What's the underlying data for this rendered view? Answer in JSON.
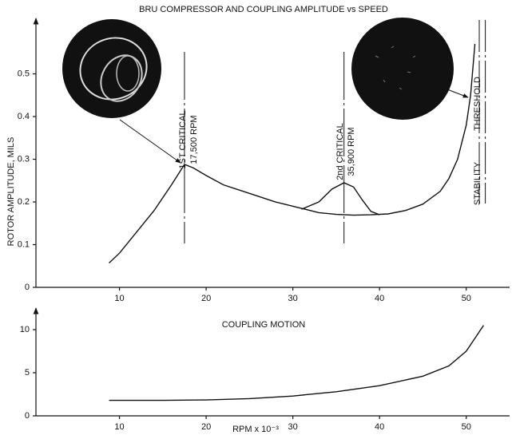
{
  "chart_data": [
    {
      "type": "line",
      "title": "BRU COMPRESSOR AND COUPLING AMPLITUDE vs SPEED",
      "y_label": "ROTOR AMPLITUDE, MILS",
      "annotations": [
        "1ST CRITICAL",
        "17,500 RPM",
        "2nd CRITICAL",
        "35,900 RPM",
        "THRESHOLD",
        "STABILITY"
      ],
      "markers": [
        17.5,
        35.9,
        51.5,
        52.2
      ],
      "series": [
        {
          "color": "#111111",
          "x": [
            8.8,
            10,
            12,
            14,
            16,
            17.5,
            18.5,
            20,
            22,
            25,
            28,
            31,
            33,
            35,
            37,
            39,
            41,
            43,
            45,
            47,
            48,
            49,
            50,
            50.5,
            51
          ],
          "values": [
            0.057,
            0.08,
            0.13,
            0.18,
            0.24,
            0.288,
            0.28,
            0.262,
            0.24,
            0.22,
            0.2,
            0.185,
            0.175,
            0.171,
            0.169,
            0.17,
            0.172,
            0.18,
            0.195,
            0.225,
            0.255,
            0.3,
            0.38,
            0.45,
            0.57
          ]
        },
        {
          "color": "#111111",
          "x": [
            31,
            33,
            34.5,
            35.9,
            37,
            38,
            39,
            40
          ],
          "values": [
            0.183,
            0.2,
            0.23,
            0.245,
            0.235,
            0.205,
            0.178,
            0.17
          ]
        }
      ],
      "xlim": [
        0,
        55
      ],
      "xticks": [
        10,
        20,
        30,
        40,
        50
      ],
      "ylim": [
        0,
        0.63
      ],
      "yticks": [
        0,
        0.1,
        0.2,
        0.3,
        0.4,
        0.5
      ]
    },
    {
      "type": "line",
      "x_label": "RPM x 10⁻³",
      "annotations": [
        "COUPLING MOTION"
      ],
      "series": [
        {
          "color": "#111111",
          "x": [
            8.8,
            15,
            20,
            25,
            30,
            35,
            40,
            45,
            48,
            50,
            52
          ],
          "values": [
            1.8,
            1.8,
            1.85,
            2,
            2.3,
            2.8,
            3.5,
            4.6,
            5.8,
            7.5,
            10.5
          ]
        }
      ],
      "xlim": [
        0,
        55
      ],
      "xticks": [
        10,
        20,
        30,
        40,
        50
      ],
      "ylim": [
        0,
        12.5
      ],
      "yticks": [
        0,
        5,
        10
      ]
    }
  ]
}
